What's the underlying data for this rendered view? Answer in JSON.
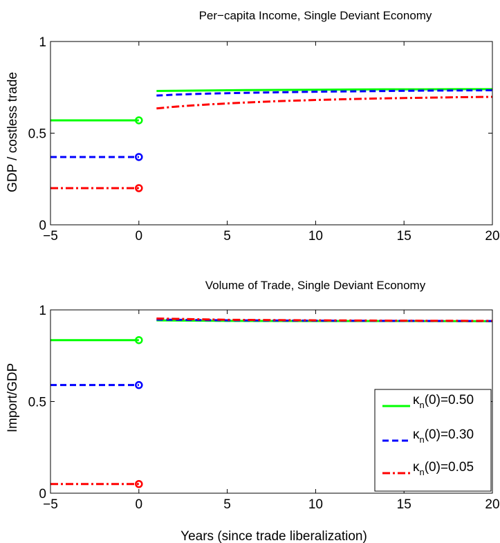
{
  "chart_data": [
    {
      "type": "line",
      "title": "Per−capita Income, Single Deviant Economy",
      "xlabel": "",
      "ylabel": "GDP / costless trade",
      "xlim": [
        -5,
        20
      ],
      "ylim": [
        0,
        1
      ],
      "xticks": [
        "−5",
        "0",
        "5",
        "10",
        "15",
        "20"
      ],
      "yticks": [
        "0",
        "0.5",
        "1"
      ],
      "grid": false,
      "series": [
        {
          "color": "#00ff00",
          "style": "solid",
          "pre": {
            "x": [
              -5,
              0
            ],
            "y": [
              0.57,
              0.57
            ]
          },
          "post": {
            "x": [
              1,
              2,
              3,
              4,
              5,
              6,
              8,
              10,
              12,
              14,
              16,
              18,
              20
            ],
            "y": [
              0.73,
              0.731,
              0.732,
              0.733,
              0.734,
              0.735,
              0.736,
              0.737,
              0.738,
              0.739,
              0.739,
              0.74,
              0.74
            ]
          }
        },
        {
          "color": "#0000ff",
          "style": "dashed",
          "pre": {
            "x": [
              -5,
              0
            ],
            "y": [
              0.37,
              0.37
            ]
          },
          "post": {
            "x": [
              1,
              2,
              3,
              4,
              5,
              6,
              8,
              10,
              12,
              14,
              16,
              18,
              20
            ],
            "y": [
              0.705,
              0.71,
              0.713,
              0.716,
              0.718,
              0.72,
              0.723,
              0.726,
              0.728,
              0.73,
              0.732,
              0.733,
              0.734
            ]
          }
        },
        {
          "color": "#ff0000",
          "style": "dashdot",
          "pre": {
            "x": [
              -5,
              0
            ],
            "y": [
              0.2,
              0.2
            ]
          },
          "post": {
            "x": [
              1,
              2,
              3,
              4,
              5,
              6,
              8,
              10,
              12,
              14,
              16,
              18,
              20
            ],
            "y": [
              0.635,
              0.644,
              0.651,
              0.657,
              0.662,
              0.667,
              0.675,
              0.681,
              0.686,
              0.69,
              0.693,
              0.696,
              0.698
            ]
          }
        }
      ]
    },
    {
      "type": "line",
      "title": "Volume of Trade, Single Deviant Economy",
      "xlabel": "Years (since trade liberalization)",
      "ylabel": "Import/GDP",
      "xlim": [
        -5,
        20
      ],
      "ylim": [
        0,
        1
      ],
      "xticks": [
        "−5",
        "0",
        "5",
        "10",
        "15",
        "20"
      ],
      "yticks": [
        "0",
        "0.5",
        "1"
      ],
      "grid": false,
      "legend_position": "lower-right",
      "series": [
        {
          "name": "κn(0)=0.50",
          "legend_main": "κ",
          "legend_sub": "n",
          "legend_tail": "(0)=0.50",
          "color": "#00ff00",
          "style": "solid",
          "pre": {
            "x": [
              -5,
              0
            ],
            "y": [
              0.835,
              0.835
            ]
          },
          "post": {
            "x": [
              1,
              5,
              10,
              15,
              20
            ],
            "y": [
              0.943,
              0.94,
              0.939,
              0.939,
              0.938
            ]
          }
        },
        {
          "name": "κn(0)=0.30",
          "legend_main": "κ",
          "legend_sub": "n",
          "legend_tail": "(0)=0.30",
          "color": "#0000ff",
          "style": "dashed",
          "pre": {
            "x": [
              -5,
              0
            ],
            "y": [
              0.59,
              0.59
            ]
          },
          "post": {
            "x": [
              1,
              5,
              10,
              15,
              20
            ],
            "y": [
              0.947,
              0.943,
              0.941,
              0.94,
              0.939
            ]
          }
        },
        {
          "name": "κn(0)=0.05",
          "legend_main": "κ",
          "legend_sub": "n",
          "legend_tail": "(0)=0.05",
          "color": "#ff0000",
          "style": "dashdot",
          "pre": {
            "x": [
              -5,
              0
            ],
            "y": [
              0.05,
              0.05
            ]
          },
          "post": {
            "x": [
              1,
              5,
              10,
              15,
              20
            ],
            "y": [
              0.953,
              0.946,
              0.943,
              0.941,
              0.94
            ]
          }
        }
      ]
    }
  ]
}
